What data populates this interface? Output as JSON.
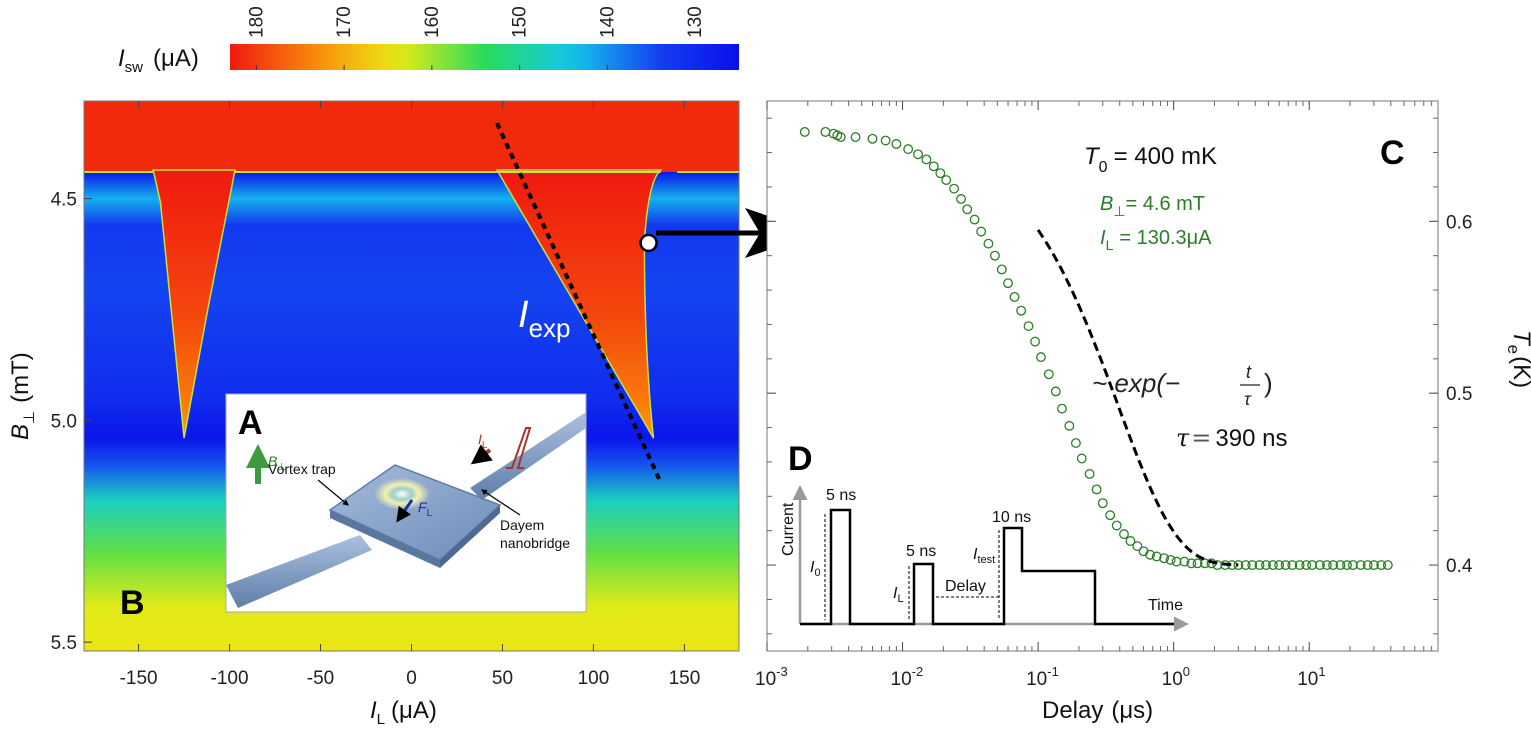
{
  "colorbar": {
    "label_main": "I",
    "label_sub": "sw",
    "label_unit": "(μA)",
    "ticks": [
      "180",
      "170",
      "160",
      "150",
      "140",
      "130"
    ],
    "tick_values": [
      180,
      170,
      160,
      150,
      140,
      130
    ],
    "range": [
      183,
      125
    ]
  },
  "chart_data": [
    {
      "panel": "B",
      "type": "heatmap",
      "xlabel_main": "I",
      "xlabel_sub": "L",
      "xlabel_unit": "(μA)",
      "ylabel_main": "B",
      "ylabel_sub": "⊥",
      "ylabel_unit": "(mT)",
      "xlim": [
        -180,
        180
      ],
      "ylim": [
        5.52,
        4.28
      ],
      "x_ticks": [
        "-150",
        "-100",
        "-50",
        "0",
        "50",
        "100",
        "150"
      ],
      "x_tick_values": [
        -150,
        -100,
        -50,
        0,
        50,
        100,
        150
      ],
      "y_ticks": [
        "4.5",
        "5.0",
        "5.5"
      ],
      "y_tick_values": [
        4.5,
        5.0,
        5.5
      ],
      "upper_boundary_B": 4.44,
      "left_lobe": {
        "left_top_I": -97,
        "right_top_I": -142,
        "tip_I": -125,
        "tip_B": 5.04
      },
      "right_lobe_tip": {
        "I": 133,
        "B": 5.04
      },
      "right_edge_top_I": 137,
      "dashed_line": {
        "from": [
          47,
          4.33
        ],
        "to": [
          137,
          5.14
        ]
      },
      "dashed_label_main": "I",
      "dashed_label_sub": "exp",
      "marker": {
        "I": 130.3,
        "B": 4.6
      }
    },
    {
      "panel": "C",
      "type": "scatter",
      "xlabel_main": "Delay",
      "xlabel_unit": "(μs)",
      "ylabel_main": "T",
      "ylabel_sub": "e",
      "ylabel_unit": "(K)",
      "xscale": "log",
      "xlim_log10": [
        -3,
        1.95
      ],
      "ylim": [
        0.35,
        0.67
      ],
      "x_ticks": [
        {
          "base": "10",
          "exp": "-3",
          "value": 0.001
        },
        {
          "base": "10",
          "exp": "-2",
          "value": 0.01
        },
        {
          "base": "10",
          "exp": "-1",
          "value": 0.1
        },
        {
          "base": "10",
          "exp": "0",
          "value": 1
        },
        {
          "base": "10",
          "exp": "1",
          "value": 10
        }
      ],
      "y_ticks": [
        "0.4",
        "0.5",
        "0.6"
      ],
      "y_tick_values": [
        0.4,
        0.5,
        0.6
      ],
      "series": [
        {
          "kind": "points",
          "x": [
            0.0019,
            0.0027,
            0.0031,
            0.0033,
            0.0035,
            0.0045,
            0.006,
            0.0075,
            0.009,
            0.011,
            0.013,
            0.015,
            0.017,
            0.019,
            0.021,
            0.024,
            0.027,
            0.03,
            0.034,
            0.038,
            0.043,
            0.048,
            0.054,
            0.06,
            0.067,
            0.075,
            0.085,
            0.095,
            0.105,
            0.12,
            0.135,
            0.15,
            0.17,
            0.19,
            0.21,
            0.24,
            0.27,
            0.3,
            0.34,
            0.38,
            0.43,
            0.48,
            0.54,
            0.6,
            0.67,
            0.75,
            0.85,
            0.95,
            1.05,
            1.2,
            1.35,
            1.5,
            1.7,
            1.9,
            2.1,
            2.4,
            2.7,
            3.0,
            3.4,
            3.8,
            4.3,
            4.8,
            5.4,
            6.0,
            6.7,
            7.5,
            8.5,
            9.5,
            10.5,
            12,
            13.5,
            15,
            17,
            19,
            21,
            24,
            27,
            30,
            34,
            38
          ],
          "y": [
            0.652,
            0.652,
            0.651,
            0.65,
            0.649,
            0.649,
            0.648,
            0.647,
            0.645,
            0.642,
            0.639,
            0.636,
            0.632,
            0.628,
            0.624,
            0.619,
            0.613,
            0.607,
            0.601,
            0.594,
            0.587,
            0.58,
            0.572,
            0.564,
            0.556,
            0.548,
            0.539,
            0.53,
            0.521,
            0.511,
            0.501,
            0.491,
            0.481,
            0.471,
            0.462,
            0.453,
            0.444,
            0.436,
            0.429,
            0.423,
            0.418,
            0.414,
            0.411,
            0.408,
            0.406,
            0.405,
            0.404,
            0.403,
            0.402,
            0.402,
            0.401,
            0.401,
            0.401,
            0.401,
            0.4,
            0.4,
            0.4,
            0.4,
            0.4,
            0.4,
            0.4,
            0.4,
            0.4,
            0.4,
            0.4,
            0.4,
            0.4,
            0.4,
            0.4,
            0.4,
            0.4,
            0.4,
            0.4,
            0.4,
            0.4,
            0.4,
            0.4,
            0.4,
            0.4,
            0.4
          ],
          "color": "#2e7d2a"
        },
        {
          "kind": "fit",
          "style": "dashed",
          "T0": 0.652,
          "Tinf": 0.4,
          "tau_us": 0.39,
          "x_range": [
            0.1,
            3.0
          ],
          "color": "#000000"
        }
      ],
      "annotations": {
        "T0_main": "T",
        "T0_sub": "0",
        "T0_value": "= 400 mK",
        "B_main": "B",
        "B_sub": "⊥",
        "B_value": "= 4.6 mT",
        "IL_main": "I",
        "IL_sub": "L",
        "IL_value": "= 130.3μA",
        "fit_prefix": "~ exp(−",
        "fit_num": "t",
        "fit_den": "τ",
        "fit_suffix": ")",
        "tau_symbol": "τ",
        "tau_eq": "=",
        "tau_value": "390 ns"
      }
    }
  ],
  "panels": {
    "A": "A",
    "B": "B",
    "C": "C",
    "D": "D"
  },
  "inset_A": {
    "vortex_trap": "Vortex trap",
    "dayem_line1": "Dayem",
    "dayem_line2": "nanobridge",
    "B_main": "B",
    "B_sub": "⊥",
    "F_main": "F",
    "F_sub": "L",
    "I_main": "I",
    "I_sub": "L"
  },
  "inset_D": {
    "current": "Current",
    "time": "Time",
    "p1_width": "5 ns",
    "p2_width": "5 ns",
    "p3_width": "10 ns",
    "I0_main": "I",
    "I0_sub": "0",
    "IL_main": "I",
    "IL_sub": "L",
    "Itest_main": "I",
    "Itest_sub": "test",
    "delay": "Delay"
  },
  "colors": {
    "dashed_line": "#000000",
    "arrow": "#000000",
    "points": "#2e7d2a",
    "annot_green": "#2e7d2a",
    "inset_bg": "#ffffff",
    "device": "#7f9cc6",
    "pulse_axis": "#9a9a9a",
    "B_arrow": "#3e9a3e",
    "F_arrow": "#1f2ea0",
    "I_arrow": "#b0352a"
  }
}
